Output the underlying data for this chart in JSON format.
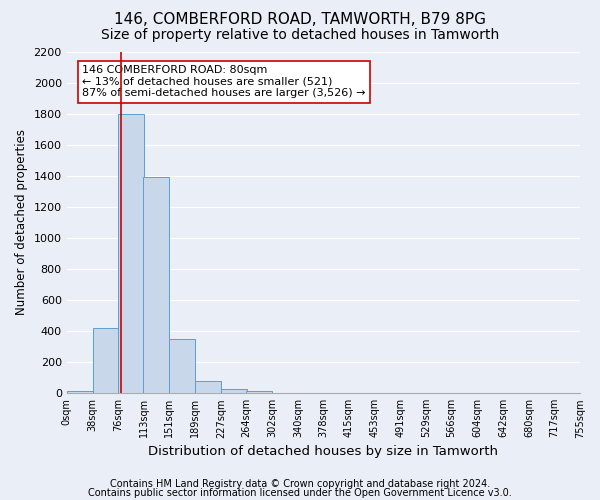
{
  "title": "146, COMBERFORD ROAD, TAMWORTH, B79 8PG",
  "subtitle": "Size of property relative to detached houses in Tamworth",
  "xlabel": "Distribution of detached houses by size in Tamworth",
  "ylabel": "Number of detached properties",
  "footer_line1": "Contains HM Land Registry data © Crown copyright and database right 2024.",
  "footer_line2": "Contains public sector information licensed under the Open Government Licence v3.0.",
  "bin_edges": [
    0,
    38,
    76,
    113,
    151,
    189,
    227,
    264,
    302,
    340,
    378,
    415,
    453,
    491,
    529,
    566,
    604,
    642,
    680,
    717,
    755
  ],
  "bin_labels": [
    "0sqm",
    "38sqm",
    "76sqm",
    "113sqm",
    "151sqm",
    "189sqm",
    "227sqm",
    "264sqm",
    "302sqm",
    "340sqm",
    "378sqm",
    "415sqm",
    "453sqm",
    "491sqm",
    "529sqm",
    "566sqm",
    "604sqm",
    "642sqm",
    "680sqm",
    "717sqm",
    "755sqm"
  ],
  "bar_heights": [
    15,
    420,
    1800,
    1390,
    350,
    80,
    30,
    15,
    0,
    0,
    0,
    0,
    0,
    0,
    0,
    0,
    0,
    0,
    0,
    0
  ],
  "bar_color": "#c8d8ea",
  "bar_edge_color": "#5a9fd4",
  "property_line_x": 80,
  "property_line_color": "#cc0000",
  "annotation_text": "146 COMBERFORD ROAD: 80sqm\n← 13% of detached houses are smaller (521)\n87% of semi-detached houses are larger (3,526) →",
  "ylim": [
    0,
    2200
  ],
  "yticks": [
    0,
    200,
    400,
    600,
    800,
    1000,
    1200,
    1400,
    1600,
    1800,
    2000,
    2200
  ],
  "background_color": "#eaeff7",
  "grid_color": "#ffffff",
  "title_fontsize": 11,
  "subtitle_fontsize": 10,
  "ylabel_fontsize": 8.5,
  "xlabel_fontsize": 9.5,
  "footer_fontsize": 7,
  "annot_fontsize": 8
}
